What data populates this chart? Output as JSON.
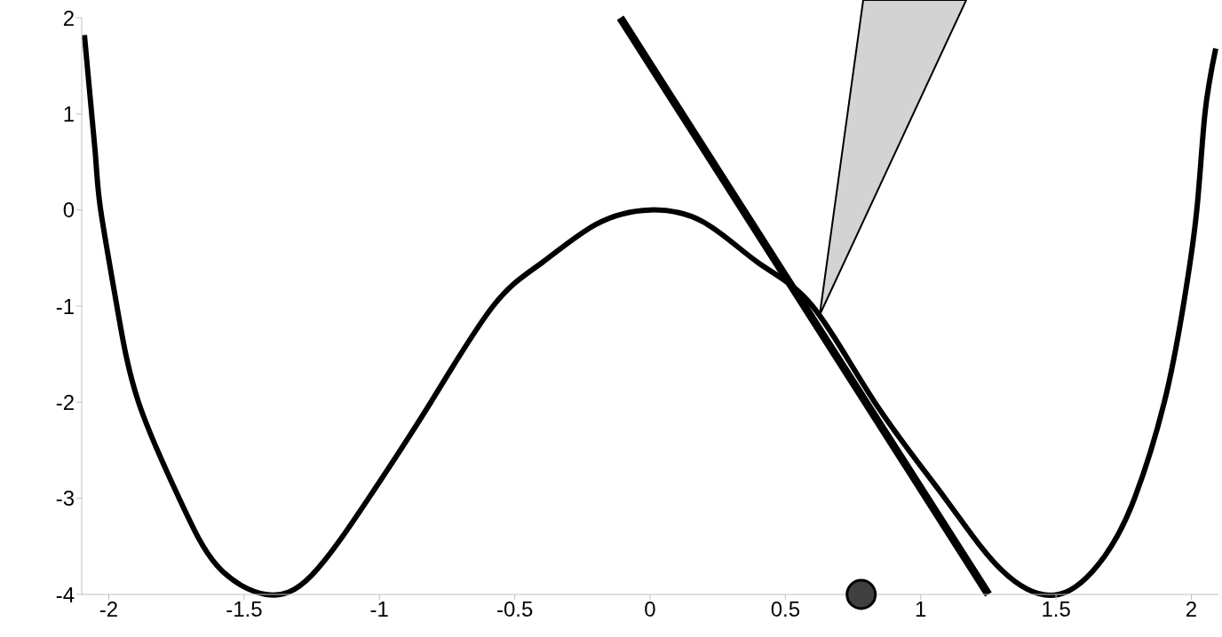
{
  "chart_data": {
    "type": "line",
    "xlim": [
      -2.1,
      2.1
    ],
    "ylim": [
      -4,
      2
    ],
    "xticks": [
      -2,
      -1.5,
      -1,
      -0.5,
      0,
      0.5,
      1,
      1.5,
      2
    ],
    "yticks": [
      -4,
      -3,
      -2,
      -1,
      0,
      1,
      2
    ],
    "grid": false,
    "series": [
      {
        "color": "#000000",
        "x": [
          -2.09,
          -2.05,
          -2.03,
          -1.97,
          -1.89,
          -1.74,
          -1.6,
          -1.42,
          -1.25,
          -1.04,
          -0.81,
          -0.58,
          -0.4,
          -0.2,
          0,
          0.2,
          0.4,
          0.6,
          0.83,
          1.09,
          1.3,
          1.51,
          1.68,
          1.79,
          1.9,
          1.97,
          2.02,
          2.05,
          2.09
        ],
        "values": [
          1.82,
          0.6,
          0,
          -1,
          -2,
          -3,
          -3.7,
          -4,
          -3.8,
          -3,
          -2,
          -1,
          -0.55,
          -0.15,
          0,
          -0.13,
          -0.55,
          -1,
          -2,
          -3,
          -3.75,
          -4,
          -3.6,
          -3,
          -2,
          -1,
          0,
          1,
          1.68
        ]
      },
      {
        "color": "#000000",
        "x": [
          -0.11,
          1.25
        ],
        "values": [
          2,
          -4
        ]
      },
      {
        "type": "scatter",
        "color": "#404040",
        "x": [
          0.78
        ],
        "values": [
          -4
        ]
      }
    ]
  }
}
